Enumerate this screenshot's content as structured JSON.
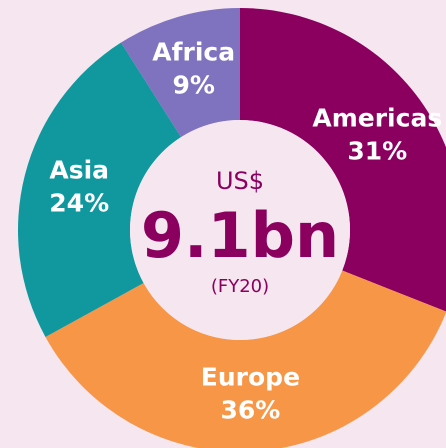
{
  "chart_data": {
    "type": "donut",
    "categories": [
      "Americas",
      "Europe",
      "Asia",
      "Africa"
    ],
    "values": [
      31,
      36,
      24,
      9
    ],
    "value_labels": [
      "31%",
      "36%",
      "24%",
      "9%"
    ],
    "colors": [
      "#8b005f",
      "#f79646",
      "#11989e",
      "#7f72bf"
    ],
    "center_label": {
      "currency": "US$",
      "amount": "9.1bn",
      "period": "(FY20)"
    }
  }
}
